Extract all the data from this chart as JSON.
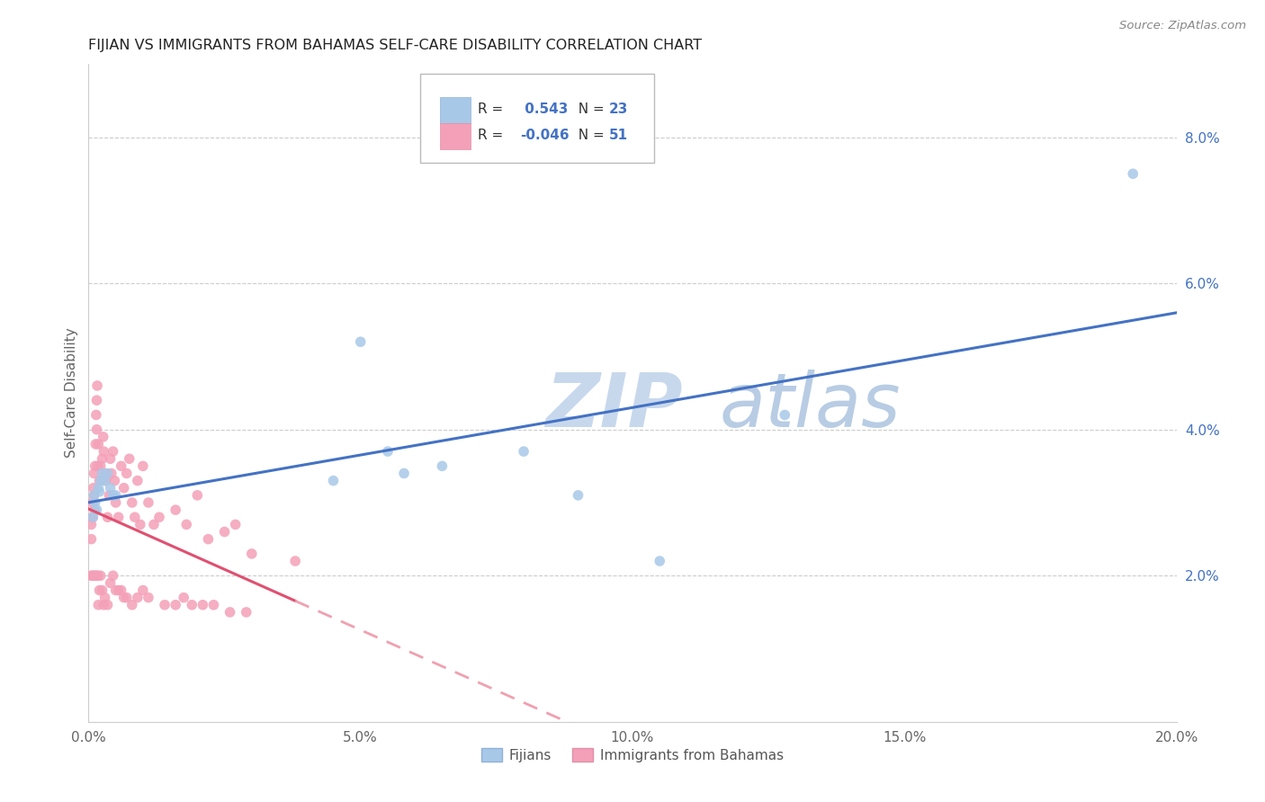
{
  "title": "FIJIAN VS IMMIGRANTS FROM BAHAMAS SELF-CARE DISABILITY CORRELATION CHART",
  "source": "Source: ZipAtlas.com",
  "ylabel": "Self-Care Disability",
  "xlim": [
    0,
    0.2
  ],
  "ylim": [
    0,
    0.09
  ],
  "ytick_labels": [
    "2.0%",
    "4.0%",
    "6.0%",
    "8.0%"
  ],
  "ytick_values": [
    0.02,
    0.04,
    0.06,
    0.08
  ],
  "xtick_labels": [
    "0.0%",
    "5.0%",
    "10.0%",
    "15.0%",
    "20.0%"
  ],
  "xtick_values": [
    0.0,
    0.05,
    0.1,
    0.15,
    0.2
  ],
  "fijian_color": "#A8C8E8",
  "bahamas_color": "#F4A0B8",
  "fijian_line_color": "#4472C4",
  "bahamas_line_solid_color": "#E05070",
  "bahamas_line_dash_color": "#F0A0B0",
  "fijian_R": 0.543,
  "fijian_N": 23,
  "bahamas_R": -0.046,
  "bahamas_N": 51,
  "fijians_x": [
    0.0008,
    0.001,
    0.0012,
    0.0015,
    0.0018,
    0.002,
    0.0022,
    0.0025,
    0.003,
    0.0035,
    0.004,
    0.0045,
    0.005,
    0.045,
    0.05,
    0.055,
    0.058,
    0.065,
    0.08,
    0.09,
    0.105,
    0.128,
    0.192
  ],
  "fijians_y": [
    0.028,
    0.031,
    0.03,
    0.029,
    0.032,
    0.0315,
    0.033,
    0.034,
    0.033,
    0.034,
    0.032,
    0.031,
    0.031,
    0.033,
    0.052,
    0.037,
    0.034,
    0.035,
    0.037,
    0.031,
    0.022,
    0.042,
    0.075
  ],
  "bahamas_x": [
    0.0005,
    0.0005,
    0.0007,
    0.0008,
    0.0009,
    0.001,
    0.001,
    0.0011,
    0.0012,
    0.0013,
    0.0014,
    0.0015,
    0.0015,
    0.0016,
    0.0017,
    0.0018,
    0.002,
    0.0022,
    0.0025,
    0.0027,
    0.0028,
    0.003,
    0.0032,
    0.0035,
    0.0038,
    0.004,
    0.0042,
    0.0045,
    0.0048,
    0.005,
    0.0055,
    0.006,
    0.0065,
    0.007,
    0.0075,
    0.008,
    0.0085,
    0.009,
    0.0095,
    0.01,
    0.011,
    0.012,
    0.013,
    0.016,
    0.018,
    0.02,
    0.022,
    0.025,
    0.027,
    0.03,
    0.038
  ],
  "bahamas_y": [
    0.025,
    0.027,
    0.03,
    0.028,
    0.032,
    0.031,
    0.034,
    0.029,
    0.035,
    0.038,
    0.042,
    0.04,
    0.044,
    0.046,
    0.035,
    0.038,
    0.033,
    0.035,
    0.036,
    0.039,
    0.037,
    0.034,
    0.033,
    0.028,
    0.031,
    0.036,
    0.034,
    0.037,
    0.033,
    0.03,
    0.028,
    0.035,
    0.032,
    0.034,
    0.036,
    0.03,
    0.028,
    0.033,
    0.027,
    0.035,
    0.03,
    0.027,
    0.028,
    0.029,
    0.027,
    0.031,
    0.025,
    0.026,
    0.027,
    0.023,
    0.022
  ],
  "bahamas_extra_x": [
    0.0005,
    0.0007,
    0.001,
    0.0012,
    0.0015,
    0.0017,
    0.0018,
    0.002,
    0.0022,
    0.0025,
    0.0028,
    0.003,
    0.0035,
    0.004,
    0.0045,
    0.005,
    0.0055,
    0.006,
    0.0065,
    0.007,
    0.008,
    0.009,
    0.01,
    0.011,
    0.014,
    0.016,
    0.0175,
    0.019,
    0.021,
    0.023,
    0.026,
    0.029
  ],
  "bahamas_extra_y": [
    0.02,
    0.02,
    0.02,
    0.02,
    0.02,
    0.02,
    0.016,
    0.018,
    0.02,
    0.018,
    0.016,
    0.017,
    0.016,
    0.019,
    0.02,
    0.018,
    0.018,
    0.018,
    0.017,
    0.017,
    0.016,
    0.017,
    0.018,
    0.017,
    0.016,
    0.016,
    0.017,
    0.016,
    0.016,
    0.016,
    0.015,
    0.015
  ]
}
